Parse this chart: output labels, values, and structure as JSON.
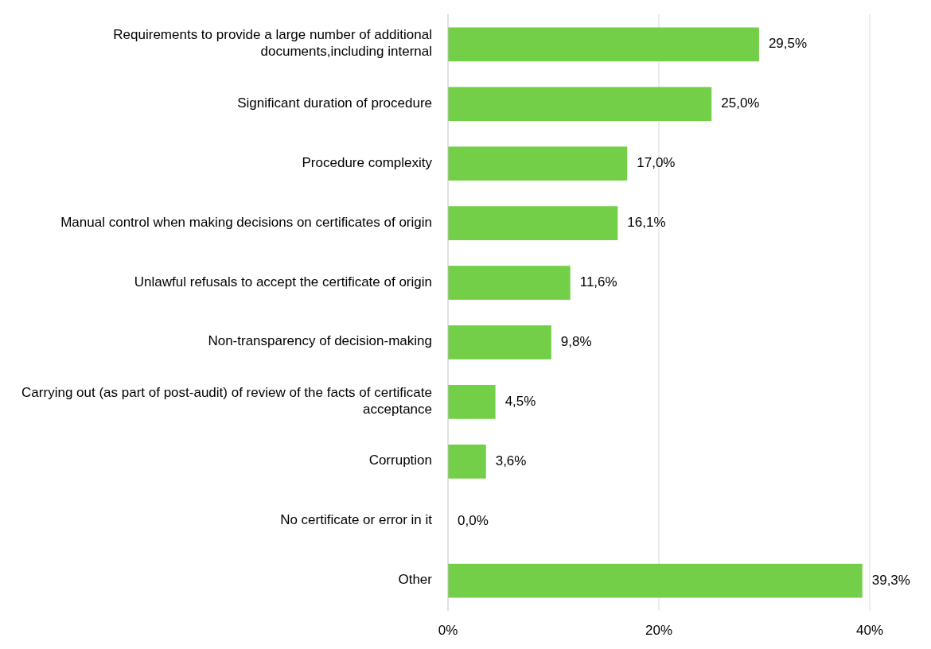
{
  "chart_data": {
    "type": "bar",
    "orientation": "horizontal",
    "categories": [
      "Requirements to provide a large number of additional documents,including internal",
      "Significant duration of procedure",
      "Procedure complexity",
      "Manual control when making decisions on certificates of origin",
      "Unlawful refusals to accept the certificate of origin",
      "Non-transparency of decision-making",
      "Carrying out (as part of post-audit) of review of the facts of certificate acceptance",
      "Corruption",
      "No certificate or error in it",
      "Other"
    ],
    "values": [
      29.5,
      25.0,
      17.0,
      16.1,
      11.6,
      9.8,
      4.5,
      3.6,
      0.0,
      39.3
    ],
    "value_labels": [
      "29,5%",
      "25,0%",
      "17,0%",
      "16,1%",
      "11,6%",
      "9,8%",
      "4,5%",
      "3,6%",
      "0,0%",
      "39,3%"
    ],
    "color": "#72cf47",
    "xlim": [
      0,
      40
    ],
    "xticks": [
      {
        "value": 0,
        "label": "0%"
      },
      {
        "value": 20,
        "label": "20%"
      },
      {
        "value": 40,
        "label": "40%"
      }
    ],
    "grid": "x"
  }
}
